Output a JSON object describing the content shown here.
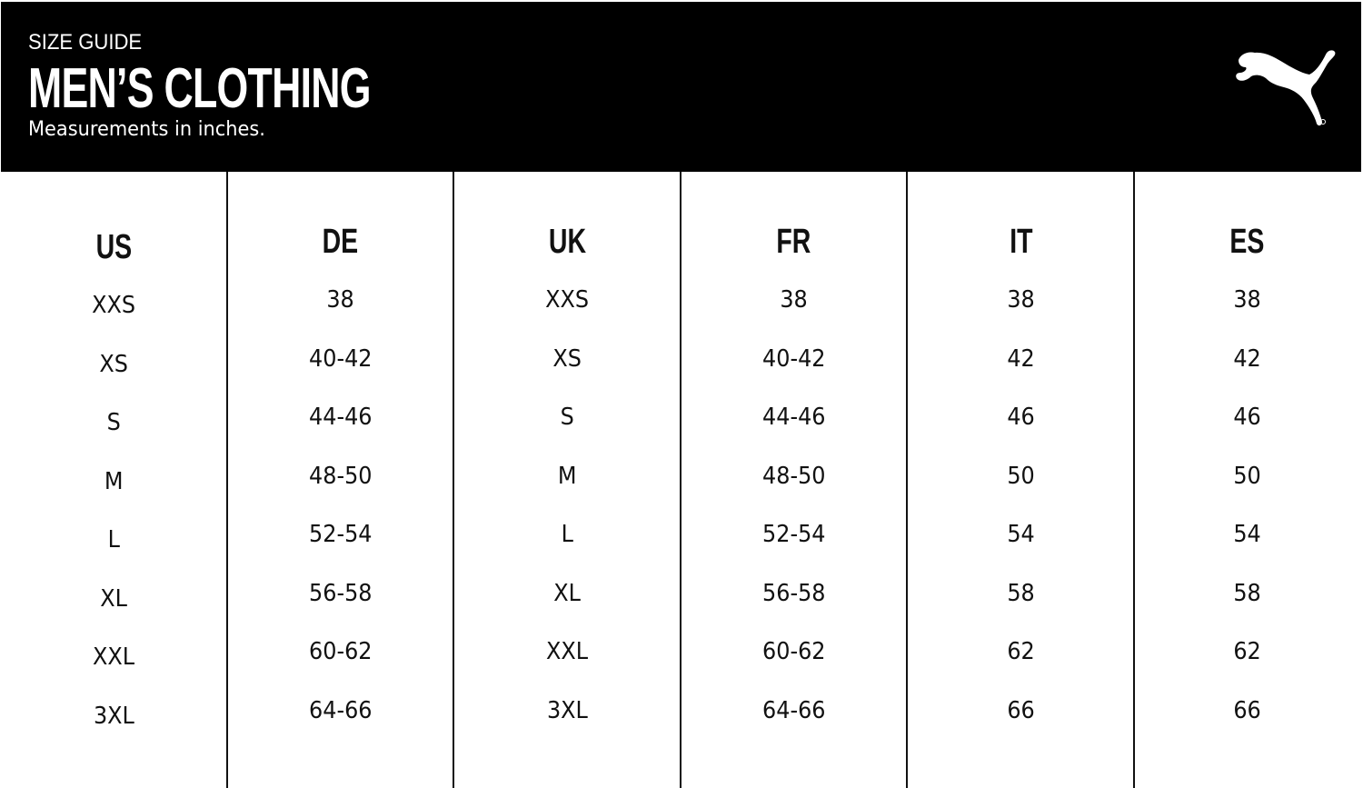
{
  "header": {
    "kicker": "SIZE GUIDE",
    "title": "MEN’S CLOTHING",
    "subtitle": "Measurements in inches.",
    "logo": "puma-cat-logo",
    "background": "#000000"
  },
  "table": {
    "columns": [
      {
        "label": "US",
        "values": [
          "XXS",
          "XS",
          "S",
          "M",
          "L",
          "XL",
          "XXL",
          "3XL"
        ]
      },
      {
        "label": "DE",
        "values": [
          "38",
          "40-42",
          "44-46",
          "48-50",
          "52-54",
          "56-58",
          "60-62",
          "64-66"
        ]
      },
      {
        "label": "UK",
        "values": [
          "XXS",
          "XS",
          "S",
          "M",
          "L",
          "XL",
          "XXL",
          "3XL"
        ]
      },
      {
        "label": "FR",
        "values": [
          "38",
          "40-42",
          "44-46",
          "48-50",
          "52-54",
          "56-58",
          "60-62",
          "64-66"
        ]
      },
      {
        "label": "IT",
        "values": [
          "38",
          "42",
          "46",
          "50",
          "54",
          "58",
          "62",
          "66"
        ]
      },
      {
        "label": "ES",
        "values": [
          "38",
          "42",
          "46",
          "50",
          "54",
          "58",
          "62",
          "66"
        ]
      }
    ]
  }
}
